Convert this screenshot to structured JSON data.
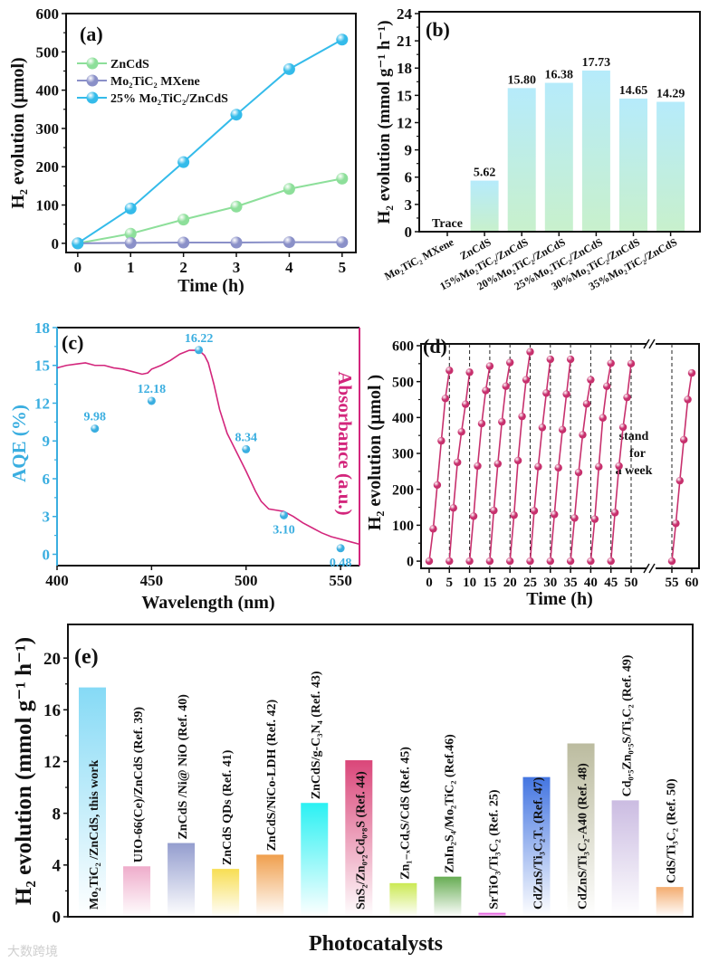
{
  "chart_data": [
    {
      "type": "line",
      "panel_label": "(a)",
      "xlabel": "Time (h)",
      "ylabel": "H₂ evolution (μmol)",
      "xlim": [
        -0.22,
        5.26
      ],
      "ylim": [
        -24,
        600
      ],
      "xticks": [
        "0",
        "1",
        "2",
        "3",
        "4",
        "5"
      ],
      "xtick_values": [
        0,
        1,
        2,
        3,
        4,
        5
      ],
      "yticks": [
        "0",
        "100",
        "200",
        "300",
        "400",
        "500",
        "600"
      ],
      "ytick_values": [
        0,
        100,
        200,
        300,
        400,
        500,
        600
      ],
      "legend": "top-left",
      "x": [
        0,
        1,
        2,
        3,
        4,
        5
      ],
      "series": [
        {
          "name": "ZnCdS",
          "values": [
            0,
            25,
            62,
            96,
            142,
            169
          ],
          "color": "#8ddf9a"
        },
        {
          "name": "Mo₂TiC₂ MXene",
          "values": [
            0,
            1,
            2,
            2,
            3,
            3
          ],
          "color": "#8a90c8"
        },
        {
          "name": "25% Mo₂TiC₂/ZnCdS",
          "values": [
            0,
            91,
            212,
            336,
            455,
            532
          ],
          "color": "#34bbea"
        }
      ]
    },
    {
      "type": "bar",
      "panel_label": "(b)",
      "xlabel": "",
      "ylabel": "H₂ evolution (mmol g⁻¹ h⁻¹)",
      "ylim": [
        0,
        24
      ],
      "yticks": [
        "0",
        "3",
        "6",
        "9",
        "12",
        "15",
        "18",
        "21",
        "24"
      ],
      "ytick_values": [
        0,
        3,
        6,
        9,
        12,
        15,
        18,
        21,
        24
      ],
      "categories": [
        "Mo₂TiC₂ MXene",
        "ZnCdS",
        "15%Mo₂TiC₂/ZnCdS",
        "20%Mo₂TiC₂/ZnCdS",
        "25%Mo₂TiC₂/ZnCdS",
        "30%Mo₂TiC₂/ZnCdS",
        "35%Mo₂TiC₂/ZnCdS"
      ],
      "values": [
        0,
        5.62,
        15.8,
        16.38,
        17.73,
        14.65,
        14.29
      ],
      "value_labels": [
        "Trace",
        "5.62",
        "15.80",
        "16.38",
        "17.73",
        "14.65",
        "14.29"
      ],
      "colors": {
        "top": "#b6ebfb",
        "bottom": "#c8f0cc"
      }
    },
    {
      "type": "scatter",
      "panel_label": "(c)",
      "xlabel": "Wavelength (nm)",
      "ylabel": "AQE (%)",
      "ylabel_right": "Absorbance (a.u.)",
      "xlim": [
        400,
        560
      ],
      "ylim": [
        -0.9,
        18
      ],
      "xticks": [
        "400",
        "450",
        "500",
        "550"
      ],
      "xtick_values": [
        400,
        450,
        500,
        550
      ],
      "yticks": [
        "0",
        "3",
        "6",
        "9",
        "12",
        "15",
        "18"
      ],
      "ytick_values": [
        0,
        3,
        6,
        9,
        12,
        15,
        18
      ],
      "points": [
        {
          "x": 420,
          "y": 9.98,
          "label": "9.98",
          "label_pos": "above"
        },
        {
          "x": 450,
          "y": 12.18,
          "label": "12.18",
          "label_pos": "above"
        },
        {
          "x": 475,
          "y": 16.22,
          "label": "16.22",
          "label_pos": "above"
        },
        {
          "x": 500,
          "y": 8.34,
          "label": "8.34",
          "label_pos": "above"
        },
        {
          "x": 520,
          "y": 3.1,
          "label": "3.10",
          "label_pos": "below"
        },
        {
          "x": 550,
          "y": 0.48,
          "label": "0.48",
          "label_pos": "below"
        }
      ],
      "absorbance_curve": [
        [
          400,
          14.8
        ],
        [
          405,
          15.0
        ],
        [
          410,
          15.1
        ],
        [
          415,
          15.2
        ],
        [
          420,
          15.0
        ],
        [
          425,
          15.0
        ],
        [
          430,
          14.8
        ],
        [
          435,
          14.7
        ],
        [
          440,
          14.5
        ],
        [
          445,
          14.3
        ],
        [
          448,
          14.4
        ],
        [
          450,
          14.7
        ],
        [
          455,
          15.0
        ],
        [
          460,
          15.4
        ],
        [
          465,
          15.9
        ],
        [
          470,
          16.2
        ],
        [
          475,
          16.2
        ],
        [
          478,
          15.8
        ],
        [
          480,
          15.2
        ],
        [
          483,
          13.5
        ],
        [
          486,
          11.5
        ],
        [
          490,
          9.6
        ],
        [
          495,
          8.1
        ],
        [
          500,
          6.6
        ],
        [
          505,
          5.0
        ],
        [
          508,
          4.2
        ],
        [
          512,
          3.6
        ],
        [
          516,
          3.5
        ],
        [
          520,
          3.4
        ],
        [
          525,
          3.0
        ],
        [
          530,
          2.5
        ],
        [
          535,
          2.1
        ],
        [
          540,
          1.7
        ],
        [
          545,
          1.4
        ],
        [
          550,
          1.2
        ],
        [
          555,
          1.0
        ],
        [
          560,
          0.8
        ]
      ],
      "colors": {
        "aqe": "#3aaee0",
        "absorbance": "#d3267c"
      }
    },
    {
      "type": "line",
      "panel_label": "(d)",
      "xlabel": "Time (h)",
      "ylabel": "H₂ evolution (μmol )",
      "ylim": [
        -20,
        605
      ],
      "yticks": [
        "0",
        "100",
        "200",
        "300",
        "400",
        "500",
        "600"
      ],
      "ytick_values": [
        0,
        100,
        200,
        300,
        400,
        500,
        600
      ],
      "xticks": [
        "0",
        "5",
        "10",
        "15",
        "20",
        "25",
        "30",
        "35",
        "40",
        "45",
        "50",
        "55",
        "60"
      ],
      "xtick_values": [
        0,
        5,
        10,
        15,
        20,
        25,
        30,
        35,
        40,
        45,
        50,
        55,
        60
      ],
      "axis_break": [
        50,
        55
      ],
      "annotation": [
        "stand",
        "for",
        "a week"
      ],
      "color": "#c7306d",
      "cycle_starts": [
        0,
        5,
        10,
        15,
        20,
        25,
        30,
        35,
        40,
        45,
        55
      ],
      "cycles": [
        [
          0,
          90,
          212,
          335,
          453,
          531
        ],
        [
          0,
          148,
          275,
          360,
          437,
          526
        ],
        [
          0,
          125,
          265,
          383,
          475,
          543
        ],
        [
          0,
          141,
          271,
          388,
          487,
          553
        ],
        [
          0,
          128,
          280,
          403,
          505,
          583
        ],
        [
          0,
          140,
          263,
          372,
          468,
          562
        ],
        [
          0,
          130,
          260,
          366,
          465,
          562
        ],
        [
          0,
          120,
          247,
          352,
          438,
          505
        ],
        [
          0,
          117,
          263,
          399,
          487,
          551
        ],
        [
          0,
          135,
          265,
          373,
          456,
          550
        ],
        [
          0,
          105,
          224,
          338,
          450,
          524
        ]
      ]
    },
    {
      "type": "bar",
      "panel_label": "(e)",
      "xlabel": "Photocatalysts",
      "ylabel": "H₂ evolution (mmol g⁻¹ h⁻¹)",
      "ylim": [
        0,
        22.6
      ],
      "yticks": [
        "0",
        "4",
        "8",
        "12",
        "16",
        "20"
      ],
      "ytick_values": [
        0,
        4,
        8,
        12,
        16,
        20
      ],
      "categories": [
        "Mo₂TiC₂ /ZnCdS, this work",
        "UIO-66(Ce)/ZnCdS (Ref. 39)",
        "ZnCdS /Ni@ NiO (Ref. 40)",
        "ZnCdS QDs (Ref. 41)",
        "ZnCdS/NiCo-LDH (Ref. 42)",
        "ZnCdS/g-C₃N₄ (Ref. 43)",
        "SnS₂/Zn₀.₂Cd₀.₈S (Ref. 44)",
        "Zn₁₋ₓCdₓS/CdS (Ref. 45)",
        "ZnIn₂S₄/Mo₂TiC₂ (Ref.46)",
        "SrTiO₃/Ti₃C₂ (Ref. 25)",
        "CdZnS/Ti₃C₂Tₓ (Ref. 47)",
        "CdZnS/Ti₃C₂-A40 (Ref. 48)",
        "Cd₀.₅Zn₀.₅S/Ti₃C₂ (Ref. 49)",
        "CdS/Ti₃C₂ (Ref. 50)"
      ],
      "values": [
        17.73,
        3.9,
        5.7,
        3.7,
        4.8,
        8.8,
        12.1,
        2.6,
        3.1,
        0.3,
        10.8,
        13.4,
        9.0,
        2.3
      ],
      "label_pos": [
        "inside",
        "above",
        "above",
        "above",
        "above",
        "above",
        "inside",
        "above",
        "above",
        "above",
        "inside",
        "inside",
        "above",
        "above"
      ],
      "colors": [
        "#7fd8f5",
        "#eea8c8",
        "#8e98cc",
        "#f7dc4a",
        "#ef9a44",
        "#1ff0f2",
        "#d83c72",
        "#c8e84a",
        "#5fa84a",
        "#e040d8",
        "#3a6ee0",
        "#b8b89a",
        "#c8b8e0",
        "#f3a868"
      ]
    }
  ],
  "watermark": "大数跨境"
}
